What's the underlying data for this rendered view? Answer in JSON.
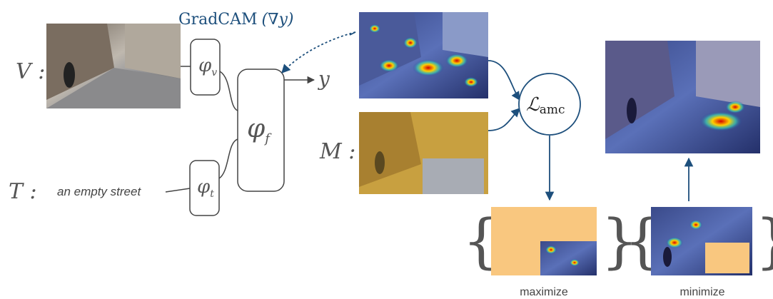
{
  "labels": {
    "gradcam": "GradCAM",
    "gradcam_arg": "(∇y)",
    "V": "V :",
    "T": "T :",
    "M": "M :",
    "text_input": "an empty street",
    "output": "y",
    "phi_v": {
      "base": "φ",
      "sub": "v"
    },
    "phi_t": {
      "base": "φ",
      "sub": "t"
    },
    "phi_f": {
      "base": "φ",
      "sub": "f"
    },
    "loss": {
      "base": "ℒ",
      "sub": "amc"
    },
    "brace_open": "{",
    "brace_close": "}",
    "maximize": "maximize",
    "minimize": "minimize"
  }
}
